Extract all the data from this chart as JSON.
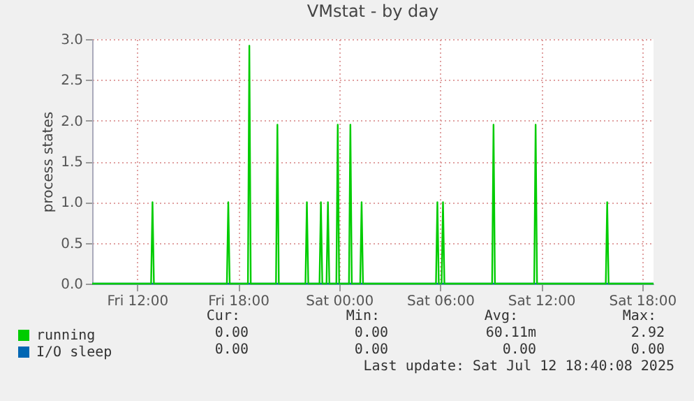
{
  "chart_data": {
    "type": "line",
    "title": "VMstat - by day",
    "ylabel": "process states",
    "xlim": [
      "2025-07-11T09:20",
      "2025-07-12T18:40"
    ],
    "xticks": [
      {
        "value": "2025-07-11T12:00",
        "label": "Fri 12:00"
      },
      {
        "value": "2025-07-11T18:00",
        "label": "Fri 18:00"
      },
      {
        "value": "2025-07-12T00:00",
        "label": "Sat 00:00"
      },
      {
        "value": "2025-07-12T06:00",
        "label": "Sat 06:00"
      },
      {
        "value": "2025-07-12T12:00",
        "label": "Sat 12:00"
      },
      {
        "value": "2025-07-12T18:00",
        "label": "Sat 18:00"
      }
    ],
    "ylim": [
      0,
      3
    ],
    "yticks": [
      {
        "value": 0,
        "label": "0.0"
      },
      {
        "value": 0.5,
        "label": "0.5"
      },
      {
        "value": 1,
        "label": "1.0"
      },
      {
        "value": 1.5,
        "label": "1.5"
      },
      {
        "value": 2,
        "label": "2.0"
      },
      {
        "value": 2.5,
        "label": "2.5"
      },
      {
        "value": 3,
        "label": "3.0"
      }
    ],
    "grid": true,
    "legend": "bottom left",
    "series": [
      {
        "name": "running",
        "color": "#00cc00",
        "x": [
          "2025-07-11T09:20",
          "2025-07-11T12:50",
          "2025-07-11T12:55",
          "2025-07-11T13:00",
          "2025-07-11T17:20",
          "2025-07-11T17:25",
          "2025-07-11T17:30",
          "2025-07-11T18:35",
          "2025-07-11T18:40",
          "2025-07-11T18:45",
          "2025-07-11T20:15",
          "2025-07-11T20:20",
          "2025-07-11T20:25",
          "2025-07-11T22:00",
          "2025-07-11T22:05",
          "2025-07-11T22:10",
          "2025-07-11T22:50",
          "2025-07-11T22:55",
          "2025-07-11T23:00",
          "2025-07-11T23:15",
          "2025-07-11T23:20",
          "2025-07-11T23:25",
          "2025-07-11T23:50",
          "2025-07-11T23:55",
          "2025-07-12T00:00",
          "2025-07-12T00:35",
          "2025-07-12T00:40",
          "2025-07-12T00:45",
          "2025-07-12T01:15",
          "2025-07-12T01:20",
          "2025-07-12T01:25",
          "2025-07-12T05:45",
          "2025-07-12T05:50",
          "2025-07-12T05:55",
          "2025-07-12T06:05",
          "2025-07-12T06:10",
          "2025-07-12T06:15",
          "2025-07-12T09:05",
          "2025-07-12T09:10",
          "2025-07-12T09:15",
          "2025-07-12T11:35",
          "2025-07-12T11:40",
          "2025-07-12T11:45",
          "2025-07-12T15:50",
          "2025-07-12T15:55",
          "2025-07-12T16:00",
          "2025-07-12T18:40"
        ],
        "values": [
          0,
          0,
          1,
          0,
          0,
          1,
          0,
          0,
          2.92,
          0,
          0,
          1.95,
          0,
          0,
          1,
          0,
          0,
          1,
          0,
          0,
          1,
          0,
          0,
          1.95,
          0,
          0,
          1.95,
          0,
          0,
          1,
          0,
          0,
          1,
          0,
          0,
          1,
          0,
          0,
          1.95,
          0,
          0,
          1.95,
          0,
          0,
          1,
          0,
          0
        ]
      },
      {
        "name": "I/O sleep",
        "color": "#0066b3",
        "x": [
          "2025-07-11T09:20",
          "2025-07-12T18:40"
        ],
        "values": [
          0,
          0
        ]
      }
    ],
    "annotations": [
      "Cur:",
      "Min:",
      "Avg:",
      "Max:",
      "0.00",
      "0.00",
      "60.11m",
      "2.92",
      "0.00",
      "0.00",
      "0.00",
      "0.00",
      "Last update: Sat Jul 12 18:40:08 2025"
    ]
  }
}
